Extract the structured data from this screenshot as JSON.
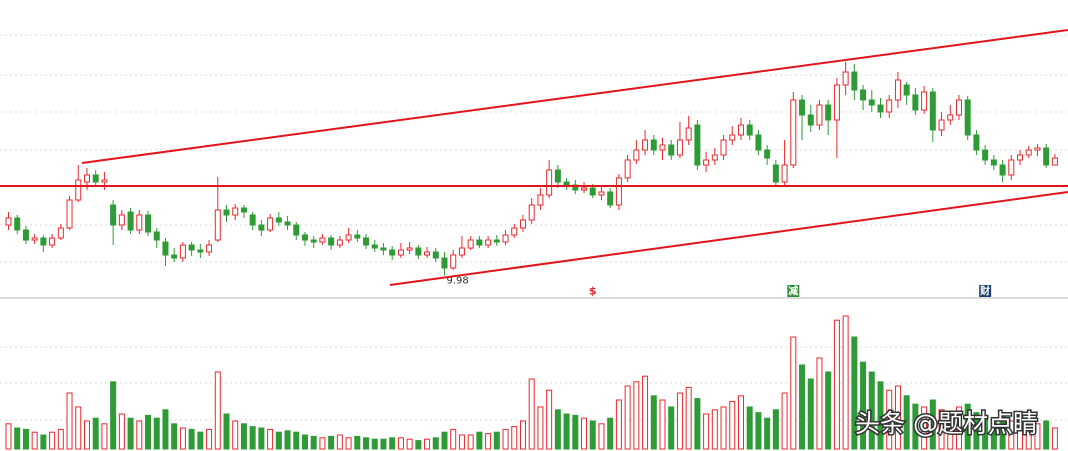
{
  "chart_data": {
    "type": "candlestick",
    "open": [
      12.0,
      12.28,
      11.8,
      11.4,
      11.48,
      11.2,
      11.48,
      11.88,
      13.0,
      13.72,
      14.0,
      13.72,
      12.8,
      12.0,
      12.52,
      11.8,
      12.4,
      11.72,
      11.32,
      10.8,
      10.68,
      11.2,
      11.0,
      10.92,
      11.4,
      12.6,
      12.4,
      12.68,
      12.4,
      12.0,
      11.8,
      12.28,
      12.12,
      12.0,
      11.6,
      11.4,
      11.32,
      11.48,
      11.2,
      11.4,
      11.6,
      11.48,
      11.2,
      11.08,
      11.0,
      10.8,
      11.0,
      11.08,
      10.8,
      10.92,
      10.68,
      10.28,
      10.8,
      11.08,
      11.4,
      11.2,
      11.4,
      11.32,
      11.6,
      11.88,
      12.2,
      12.8,
      13.2,
      14.2,
      13.72,
      13.6,
      13.4,
      13.48,
      13.2,
      13.32,
      12.8,
      13.88,
      14.6,
      15.0,
      15.4,
      15.0,
      15.2,
      14.8,
      15.4,
      16.0,
      14.4,
      14.6,
      14.8,
      15.4,
      15.6,
      16.0,
      15.6,
      15.0,
      14.4,
      13.72,
      14.4,
      17.0,
      16.4,
      16.0,
      16.8,
      16.2,
      17.6,
      18.12,
      17.4,
      17.0,
      16.8,
      16.52,
      17.0,
      17.6,
      17.2,
      16.6,
      17.32,
      15.8,
      16.2,
      16.4,
      17.0,
      15.6,
      15.0,
      14.6,
      14.4,
      14.0,
      14.6,
      14.8,
      15.0,
      15.08,
      14.4
    ],
    "close": [
      12.28,
      11.8,
      11.4,
      11.48,
      11.2,
      11.48,
      11.88,
      13.0,
      13.8,
      14.0,
      13.72,
      13.8,
      12.0,
      12.4,
      11.8,
      12.4,
      11.72,
      11.4,
      10.8,
      10.68,
      11.2,
      11.0,
      10.92,
      11.2,
      12.6,
      12.4,
      12.68,
      12.52,
      12.0,
      11.8,
      12.28,
      12.12,
      12.0,
      11.6,
      11.4,
      11.32,
      11.48,
      11.2,
      11.4,
      11.6,
      11.48,
      11.2,
      11.08,
      11.0,
      10.8,
      11.0,
      11.08,
      10.8,
      10.92,
      10.68,
      10.28,
      10.8,
      11.08,
      11.4,
      11.2,
      11.4,
      11.32,
      11.6,
      11.88,
      12.2,
      12.8,
      13.2,
      14.2,
      13.72,
      13.6,
      13.4,
      13.48,
      13.2,
      13.32,
      12.8,
      13.88,
      14.6,
      15.0,
      15.4,
      15.0,
      15.2,
      14.8,
      15.4,
      15.88,
      14.4,
      14.6,
      14.8,
      15.4,
      15.6,
      16.0,
      15.6,
      15.0,
      14.68,
      13.72,
      14.4,
      17.0,
      16.4,
      16.0,
      16.8,
      16.2,
      17.6,
      18.12,
      17.4,
      17.0,
      16.8,
      16.52,
      17.0,
      17.8,
      17.2,
      16.6,
      17.32,
      15.8,
      16.2,
      16.4,
      17.0,
      15.6,
      15.0,
      14.6,
      14.4,
      14.0,
      14.6,
      14.8,
      15.0,
      15.08,
      14.4,
      14.68
    ],
    "high": [
      12.52,
      12.4,
      11.96,
      11.64,
      11.6,
      11.64,
      12.04,
      13.16,
      14.4,
      14.28,
      14.2,
      14.12,
      13.0,
      12.6,
      12.68,
      12.6,
      12.56,
      11.88,
      11.48,
      11.08,
      11.32,
      11.32,
      11.24,
      11.4,
      13.92,
      12.8,
      12.84,
      12.8,
      12.52,
      12.2,
      12.44,
      12.52,
      12.36,
      12.12,
      11.72,
      11.56,
      11.64,
      11.6,
      11.56,
      11.88,
      11.8,
      11.64,
      11.4,
      11.28,
      11.16,
      11.28,
      11.32,
      11.2,
      11.12,
      11.08,
      10.92,
      11.0,
      11.56,
      11.56,
      11.56,
      11.56,
      11.6,
      11.8,
      12.04,
      12.4,
      13.08,
      13.48,
      14.6,
      14.4,
      13.88,
      13.8,
      13.72,
      13.64,
      13.56,
      13.48,
      14.04,
      14.8,
      15.4,
      15.8,
      15.6,
      15.48,
      15.4,
      16.12,
      16.36,
      16.2,
      14.92,
      15.08,
      15.6,
      15.96,
      16.28,
      16.2,
      15.8,
      15.2,
      14.6,
      15.4,
      17.32,
      17.2,
      16.8,
      17.0,
      17.0,
      17.88,
      18.52,
      18.44,
      17.6,
      17.4,
      17.08,
      17.2,
      18.12,
      17.72,
      17.48,
      17.56,
      17.48,
      16.52,
      16.8,
      17.2,
      17.16,
      15.8,
      15.2,
      14.8,
      14.6,
      14.8,
      15.0,
      15.16,
      15.24,
      15.24,
      14.84
    ],
    "low": [
      11.8,
      11.64,
      11.24,
      11.24,
      10.92,
      11.08,
      11.4,
      11.8,
      12.92,
      13.4,
      13.56,
      13.4,
      11.2,
      11.8,
      11.64,
      11.64,
      11.56,
      11.08,
      10.36,
      10.52,
      10.52,
      10.76,
      10.68,
      10.76,
      11.32,
      12.12,
      12.2,
      12.28,
      11.8,
      11.56,
      11.72,
      11.96,
      11.8,
      11.4,
      11.16,
      11.08,
      11.2,
      11.0,
      11.08,
      11.28,
      11.32,
      11.04,
      10.92,
      10.8,
      10.6,
      10.68,
      10.84,
      10.64,
      10.68,
      10.52,
      9.98,
      10.2,
      10.68,
      11.0,
      11.08,
      11.08,
      11.16,
      11.2,
      11.48,
      11.72,
      12.04,
      12.6,
      13.08,
      13.48,
      13.4,
      13.24,
      13.28,
      13.08,
      13.0,
      12.68,
      12.6,
      13.72,
      14.44,
      14.8,
      14.8,
      14.6,
      14.6,
      14.68,
      15.2,
      14.2,
      14.12,
      14.4,
      14.6,
      15.2,
      15.4,
      15.4,
      14.8,
      14.4,
      13.56,
      13.6,
      14.28,
      15.4,
      15.72,
      15.8,
      15.6,
      14.68,
      17.2,
      17.0,
      16.6,
      16.52,
      16.28,
      16.28,
      16.68,
      16.8,
      16.4,
      16.44,
      15.32,
      15.56,
      16.0,
      16.2,
      15.4,
      14.8,
      14.4,
      14.2,
      13.72,
      13.8,
      14.4,
      14.68,
      14.76,
      14.28,
      14.52
    ],
    "volume": [
      18,
      15,
      14,
      12,
      10,
      12,
      14,
      40,
      30,
      20,
      22,
      18,
      48,
      25,
      22,
      20,
      24,
      22,
      28,
      18,
      15,
      14,
      12,
      14,
      55,
      25,
      20,
      18,
      16,
      15,
      14,
      12,
      13,
      12,
      10,
      9,
      8,
      9,
      10,
      8,
      9,
      8,
      7,
      7,
      8,
      8,
      7,
      6,
      7,
      8,
      12,
      14,
      10,
      10,
      12,
      11,
      12,
      14,
      16,
      20,
      50,
      30,
      42,
      28,
      25,
      24,
      22,
      20,
      18,
      22,
      35,
      45,
      48,
      52,
      38,
      35,
      30,
      40,
      44,
      36,
      25,
      28,
      30,
      34,
      38,
      30,
      26,
      22,
      28,
      40,
      80,
      60,
      50,
      65,
      55,
      92,
      95,
      80,
      62,
      55,
      48,
      42,
      45,
      38,
      32,
      30,
      35,
      28,
      26,
      30,
      32,
      26,
      24,
      22,
      24,
      20,
      18,
      16,
      18,
      20,
      15
    ],
    "events": [
      null,
      null,
      null,
      null,
      null,
      null,
      null,
      null,
      null,
      null,
      null,
      null,
      null,
      null,
      null,
      null,
      null,
      null,
      null,
      null,
      null,
      null,
      null,
      null,
      null,
      null,
      null,
      null,
      null,
      null,
      null,
      null,
      null,
      null,
      null,
      null,
      null,
      null,
      null,
      null,
      null,
      null,
      null,
      null,
      null,
      null,
      null,
      null,
      null,
      null,
      null,
      null,
      null,
      null,
      null,
      null,
      null,
      null,
      null,
      null,
      null,
      null,
      null,
      null,
      null,
      null,
      null,
      {
        "label": "$",
        "color": "#e0282e",
        "box": false
      },
      null,
      null,
      null,
      null,
      null,
      null,
      null,
      null,
      null,
      null,
      null,
      null,
      null,
      null,
      null,
      null,
      null,
      null,
      null,
      null,
      null,
      null,
      {
        "label": "减",
        "color": "#2e8b3a",
        "box": true
      },
      null,
      null,
      null,
      null,
      null,
      null,
      null,
      null,
      null,
      null,
      null,
      null,
      null,
      null,
      null,
      null,
      null,
      null,
      null,
      null,
      null,
      {
        "label": "财",
        "color": "#1d3f6e",
        "box": true
      },
      null,
      null,
      null,
      null,
      null,
      null,
      null,
      null
    ],
    "ylim": [
      9,
      21
    ],
    "volume_ylim": [
      0,
      100
    ],
    "up_color": "#e8292e",
    "down_color": "#2f9b37"
  },
  "watermark": "头条 @题材点睛"
}
